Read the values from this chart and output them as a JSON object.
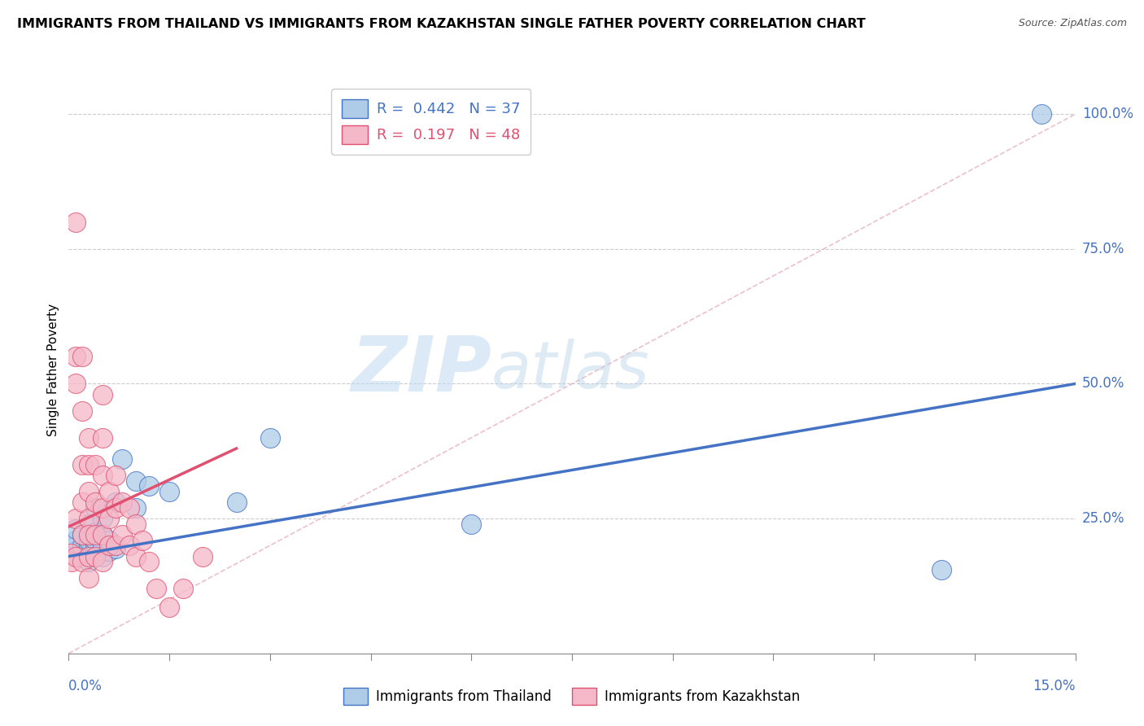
{
  "title": "IMMIGRANTS FROM THAILAND VS IMMIGRANTS FROM KAZAKHSTAN SINGLE FATHER POVERTY CORRELATION CHART",
  "source": "Source: ZipAtlas.com",
  "ylabel": "Single Father Poverty",
  "xlim": [
    0.0,
    0.15
  ],
  "ylim": [
    0.0,
    1.05
  ],
  "legend_thailand": "R =  0.442   N = 37",
  "legend_kazakhstan": "R =  0.197   N = 48",
  "thailand_color": "#aecce8",
  "kazakhstan_color": "#f5b8c8",
  "thailand_line_color": "#4472c4",
  "kazakhstan_line_color": "#e05070",
  "diag_color": "#e8b0c0",
  "watermark_zip": "ZIP",
  "watermark_atlas": "atlas",
  "thailand_x": [
    0.0005,
    0.001,
    0.001,
    0.001,
    0.001,
    0.0015,
    0.002,
    0.002,
    0.002,
    0.003,
    0.003,
    0.003,
    0.003,
    0.003,
    0.004,
    0.004,
    0.004,
    0.004,
    0.004,
    0.005,
    0.005,
    0.005,
    0.005,
    0.006,
    0.006,
    0.007,
    0.007,
    0.008,
    0.01,
    0.01,
    0.012,
    0.015,
    0.025,
    0.03,
    0.06,
    0.13,
    0.145
  ],
  "thailand_y": [
    0.185,
    0.19,
    0.2,
    0.21,
    0.23,
    0.18,
    0.19,
    0.2,
    0.22,
    0.17,
    0.185,
    0.2,
    0.21,
    0.24,
    0.185,
    0.2,
    0.21,
    0.225,
    0.27,
    0.18,
    0.2,
    0.22,
    0.25,
    0.19,
    0.21,
    0.195,
    0.28,
    0.36,
    0.27,
    0.32,
    0.31,
    0.3,
    0.28,
    0.4,
    0.24,
    0.155,
    1.0
  ],
  "kazakhstan_x": [
    0.0003,
    0.0005,
    0.001,
    0.001,
    0.001,
    0.001,
    0.001,
    0.002,
    0.002,
    0.002,
    0.002,
    0.002,
    0.002,
    0.003,
    0.003,
    0.003,
    0.003,
    0.003,
    0.003,
    0.003,
    0.004,
    0.004,
    0.004,
    0.004,
    0.005,
    0.005,
    0.005,
    0.005,
    0.005,
    0.005,
    0.006,
    0.006,
    0.006,
    0.007,
    0.007,
    0.007,
    0.008,
    0.008,
    0.009,
    0.009,
    0.01,
    0.01,
    0.011,
    0.012,
    0.013,
    0.015,
    0.017,
    0.02
  ],
  "kazakhstan_y": [
    0.185,
    0.17,
    0.8,
    0.55,
    0.5,
    0.25,
    0.18,
    0.55,
    0.45,
    0.35,
    0.28,
    0.22,
    0.17,
    0.4,
    0.35,
    0.3,
    0.25,
    0.22,
    0.18,
    0.14,
    0.35,
    0.28,
    0.22,
    0.18,
    0.48,
    0.4,
    0.33,
    0.27,
    0.22,
    0.17,
    0.3,
    0.25,
    0.2,
    0.33,
    0.27,
    0.2,
    0.28,
    0.22,
    0.27,
    0.2,
    0.24,
    0.18,
    0.21,
    0.17,
    0.12,
    0.085,
    0.12,
    0.18
  ],
  "thailand_trend_x0": 0.0,
  "thailand_trend_y0": 0.18,
  "thailand_trend_x1": 0.15,
  "thailand_trend_y1": 0.5,
  "kazakhstan_trend_x0": 0.0,
  "kazakhstan_trend_y0": 0.235,
  "kazakhstan_trend_x1": 0.025,
  "kazakhstan_trend_y1": 0.38
}
